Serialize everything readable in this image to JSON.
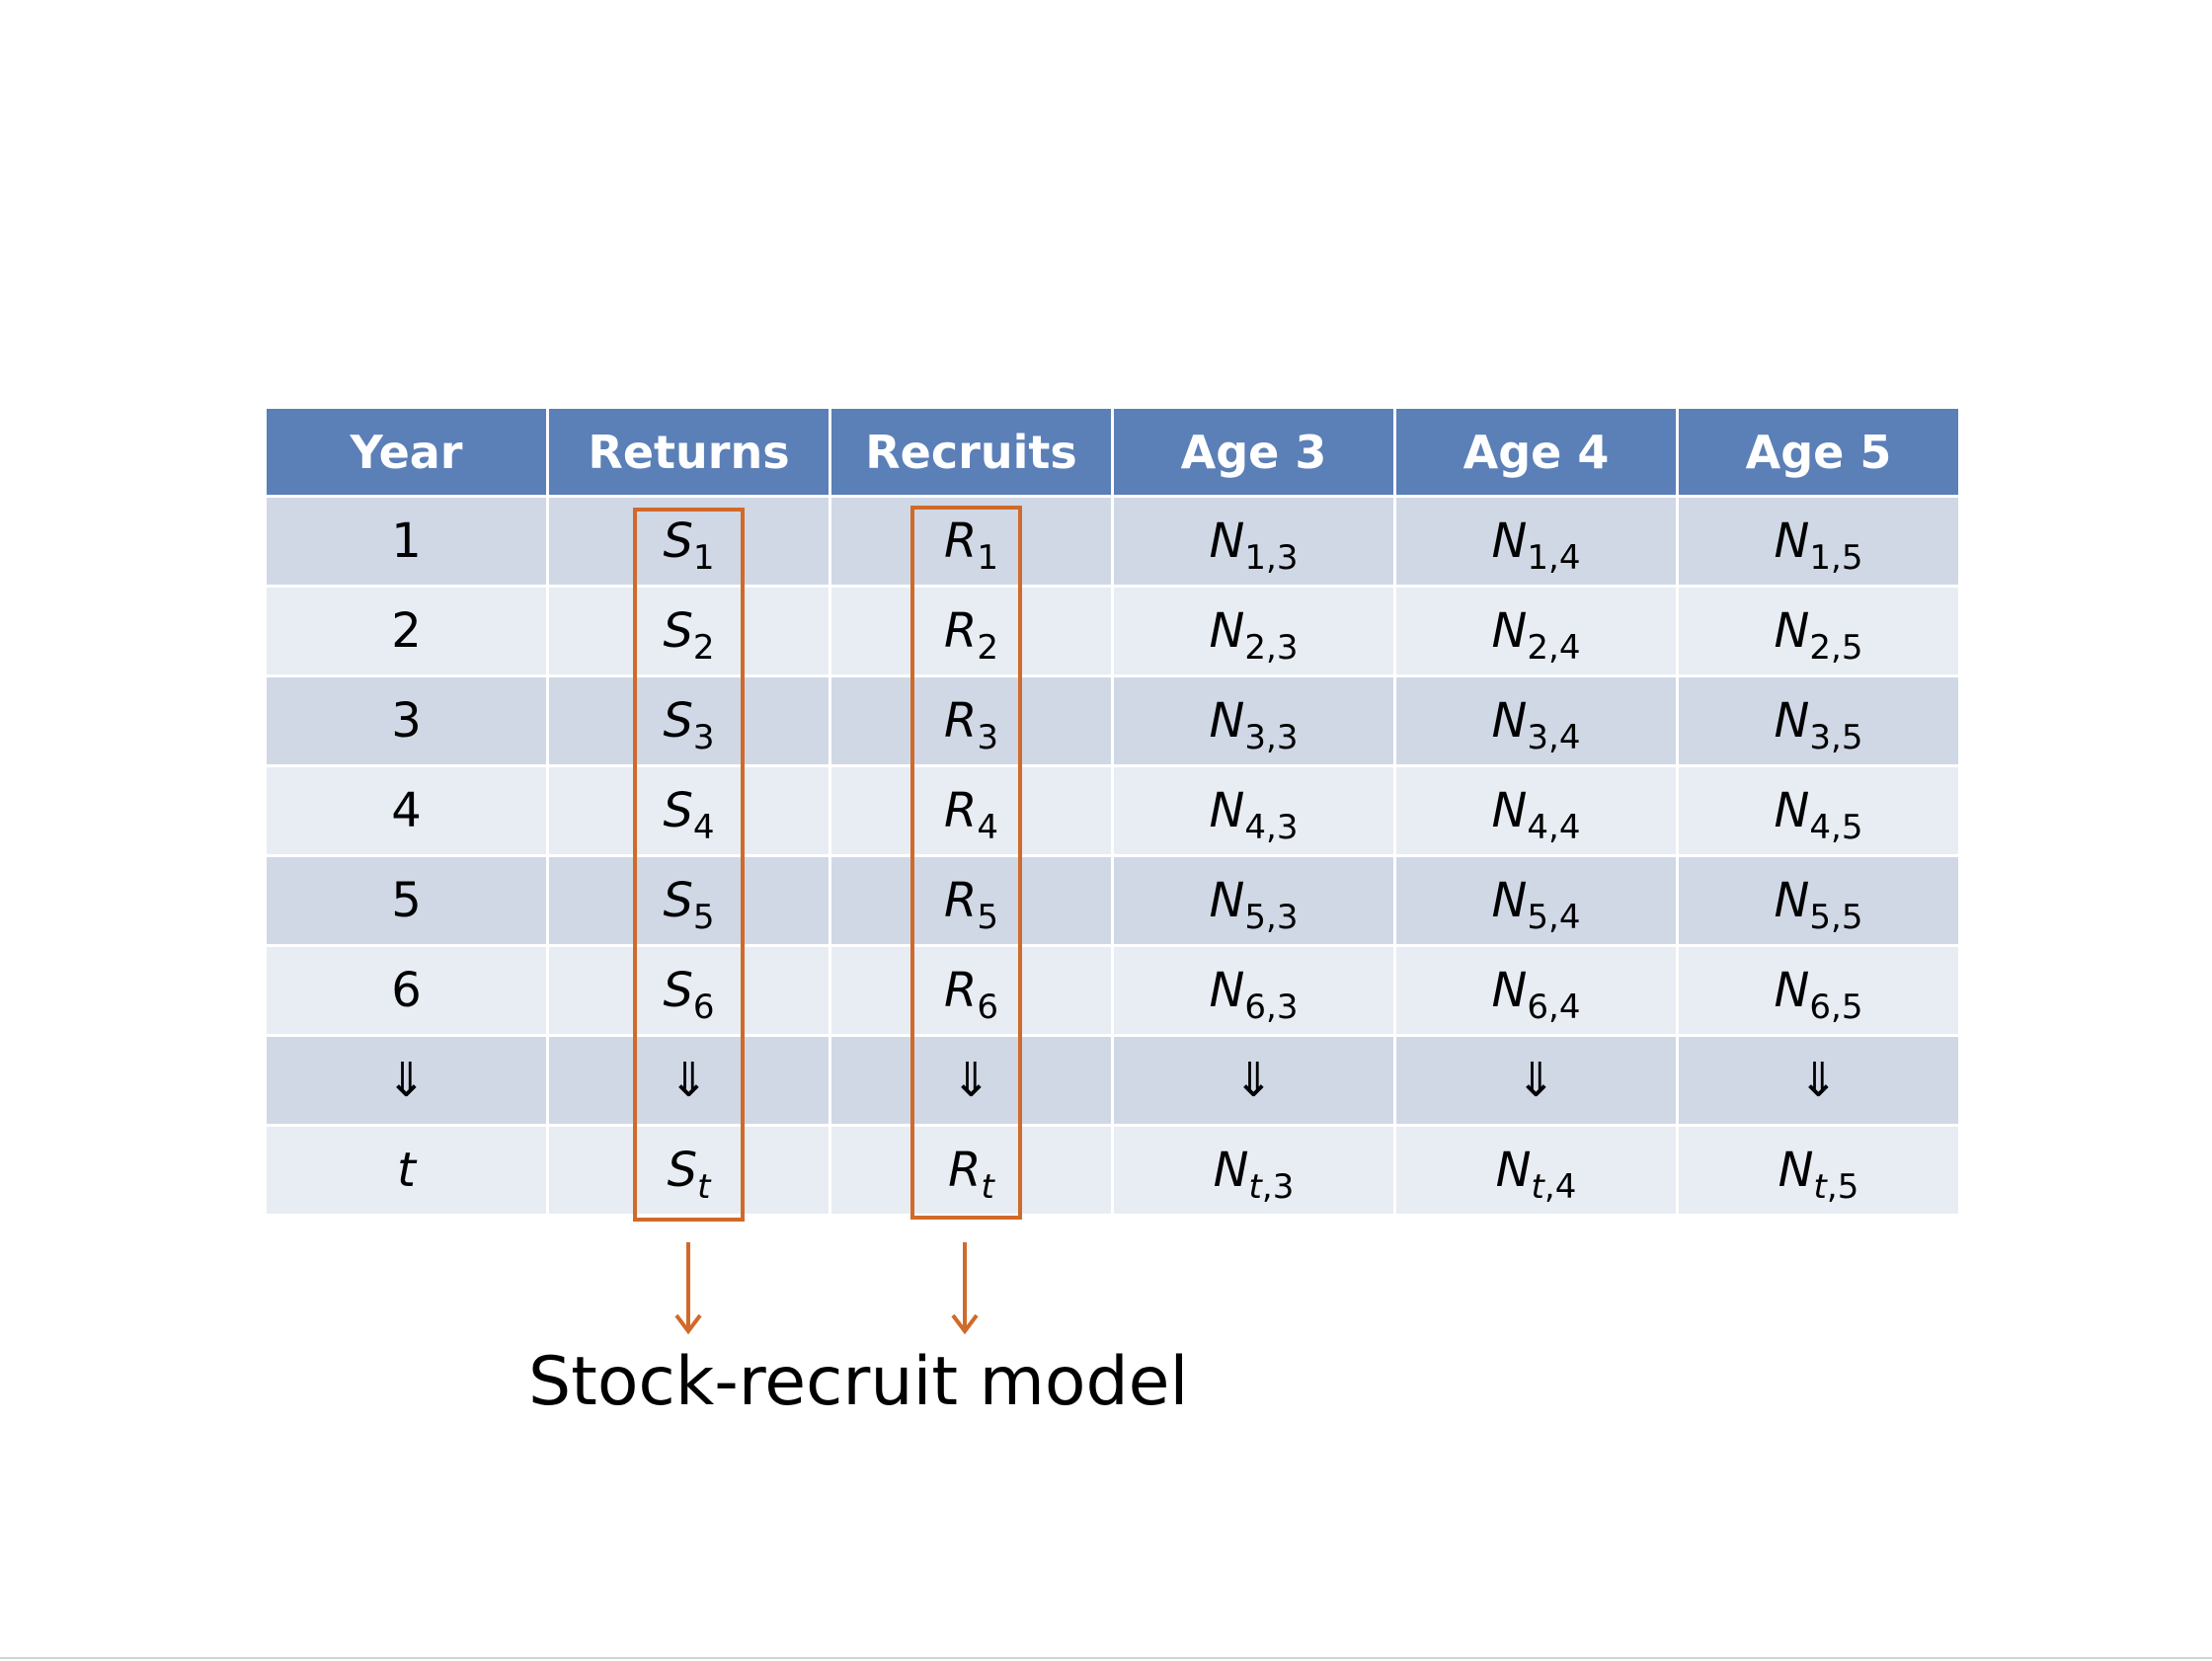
{
  "slide": {
    "caption": "Stock-recruit model",
    "colors": {
      "header_bg": "#5b7fb7",
      "row_odd_bg": "#d0d8e6",
      "row_even_bg": "#e8ecf3",
      "highlight": "#d06a2a"
    }
  },
  "table": {
    "headers": [
      "Year",
      "Returns",
      "Recruits",
      "Age 3",
      "Age 4",
      "Age 5"
    ],
    "rows": [
      {
        "year": "1",
        "returns": {
          "base": "S",
          "sub": "1"
        },
        "recruits": {
          "base": "R",
          "sub": "1"
        },
        "age3": {
          "base": "N",
          "sub": "1,3"
        },
        "age4": {
          "base": "N",
          "sub": "1,4"
        },
        "age5": {
          "base": "N",
          "sub": "1,5"
        }
      },
      {
        "year": "2",
        "returns": {
          "base": "S",
          "sub": "2"
        },
        "recruits": {
          "base": "R",
          "sub": "2"
        },
        "age3": {
          "base": "N",
          "sub": "2,3"
        },
        "age4": {
          "base": "N",
          "sub": "2,4"
        },
        "age5": {
          "base": "N",
          "sub": "2,5"
        }
      },
      {
        "year": "3",
        "returns": {
          "base": "S",
          "sub": "3"
        },
        "recruits": {
          "base": "R",
          "sub": "3"
        },
        "age3": {
          "base": "N",
          "sub": "3,3"
        },
        "age4": {
          "base": "N",
          "sub": "3,4"
        },
        "age5": {
          "base": "N",
          "sub": "3,5"
        }
      },
      {
        "year": "4",
        "returns": {
          "base": "S",
          "sub": "4"
        },
        "recruits": {
          "base": "R",
          "sub": "4"
        },
        "age3": {
          "base": "N",
          "sub": "4,3"
        },
        "age4": {
          "base": "N",
          "sub": "4,4"
        },
        "age5": {
          "base": "N",
          "sub": "4,5"
        }
      },
      {
        "year": "5",
        "returns": {
          "base": "S",
          "sub": "5"
        },
        "recruits": {
          "base": "R",
          "sub": "5"
        },
        "age3": {
          "base": "N",
          "sub": "5,3"
        },
        "age4": {
          "base": "N",
          "sub": "5,4"
        },
        "age5": {
          "base": "N",
          "sub": "5,5"
        }
      },
      {
        "year": "6",
        "returns": {
          "base": "S",
          "sub": "6"
        },
        "recruits": {
          "base": "R",
          "sub": "6"
        },
        "age3": {
          "base": "N",
          "sub": "6,3"
        },
        "age4": {
          "base": "N",
          "sub": "6,4"
        },
        "age5": {
          "base": "N",
          "sub": "6,5"
        }
      }
    ],
    "continuation_symbol": "⇓",
    "last_row": {
      "year": "t",
      "returns": {
        "base": "S",
        "sub": "t"
      },
      "recruits": {
        "base": "R",
        "sub": "t"
      },
      "age3": {
        "base": "N",
        "sub_var": "t",
        "sub_rest": ",3"
      },
      "age4": {
        "base": "N",
        "sub_var": "t",
        "sub_rest": ",4"
      },
      "age5": {
        "base": "N",
        "sub_var": "t",
        "sub_rest": ",5"
      }
    }
  }
}
